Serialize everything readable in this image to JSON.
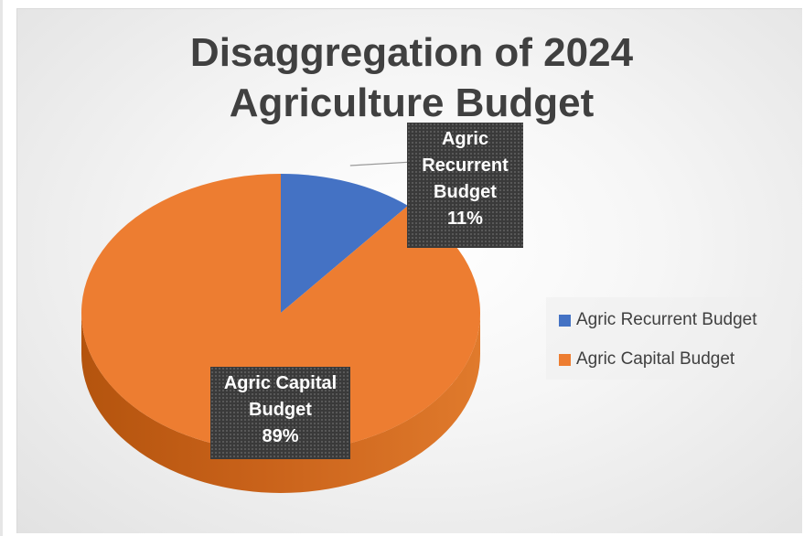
{
  "chart_data": {
    "type": "pie",
    "title": [
      "Disaggregation of 2024",
      "Agriculture Budget"
    ],
    "slices": [
      {
        "name": "Agric Recurrent Budget",
        "value": 11,
        "color": "#4472c4",
        "label_lines": [
          "Agric",
          "Recurrent",
          "Budget",
          "11%"
        ]
      },
      {
        "name": "Agric Capital Budget",
        "value": 89,
        "color": "#ed7d31",
        "label_lines": [
          "Agric Capital",
          "Budget",
          "89%"
        ]
      }
    ],
    "unit": "%",
    "legend_position": "right",
    "style": "3D"
  }
}
